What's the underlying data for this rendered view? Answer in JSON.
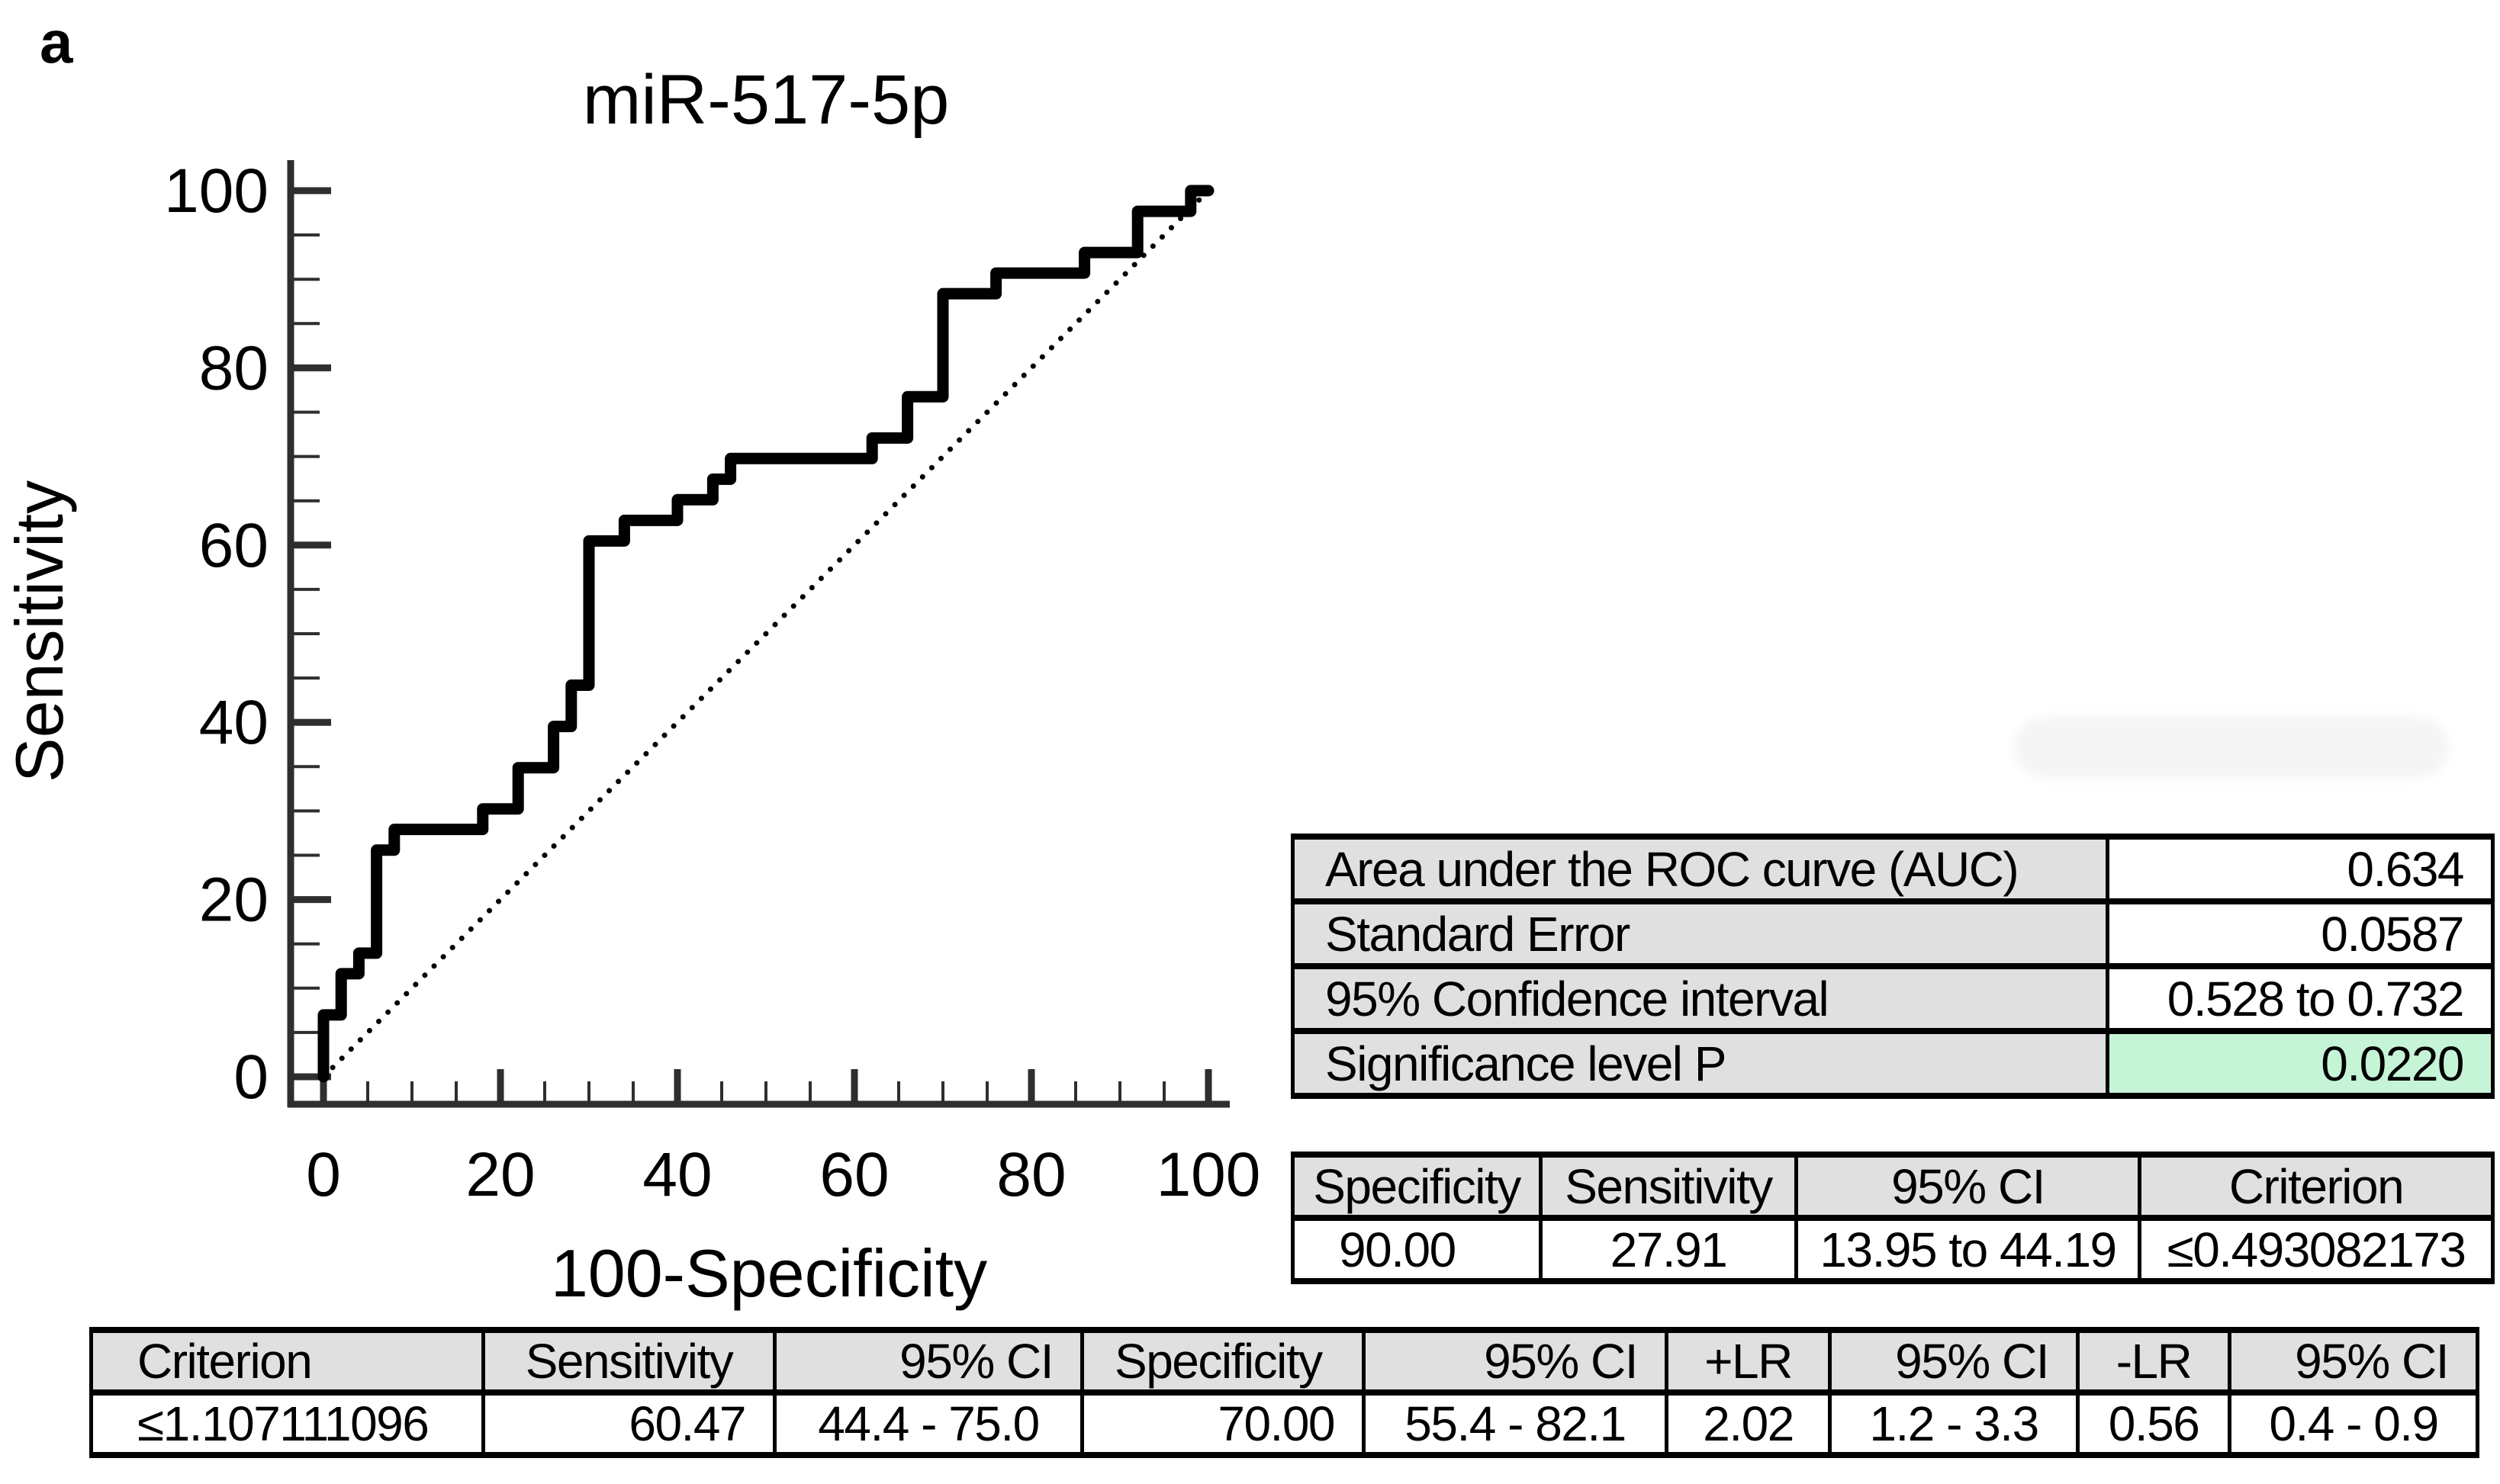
{
  "figure_label": "a",
  "chart_data": {
    "type": "line",
    "subtype": "roc-step-curve",
    "title": "miR-517-5p",
    "xlabel": "100-Specificity",
    "ylabel": "Sensitivity",
    "xlim": [
      0,
      100
    ],
    "ylim": [
      0,
      100
    ],
    "x_ticks": [
      0,
      20,
      40,
      60,
      80,
      100
    ],
    "y_ticks": [
      0,
      20,
      40,
      60,
      80,
      100
    ],
    "minor_tick_step": 5,
    "grid": false,
    "legend": "none",
    "series": [
      {
        "name": "ROC curve (miR-517-5p)",
        "style": "solid-step",
        "color": "#000000",
        "points": [
          [
            0,
            0
          ],
          [
            0,
            6.98
          ],
          [
            2,
            6.98
          ],
          [
            2,
            11.63
          ],
          [
            4,
            11.63
          ],
          [
            4,
            13.95
          ],
          [
            6,
            13.95
          ],
          [
            6,
            25.58
          ],
          [
            8,
            25.58
          ],
          [
            8,
            27.91
          ],
          [
            18,
            27.91
          ],
          [
            18,
            30.23
          ],
          [
            22,
            30.23
          ],
          [
            22,
            34.88
          ],
          [
            26,
            34.88
          ],
          [
            26,
            39.53
          ],
          [
            28,
            39.53
          ],
          [
            28,
            44.19
          ],
          [
            30,
            44.19
          ],
          [
            30,
            60.47
          ],
          [
            34,
            60.47
          ],
          [
            34,
            62.79
          ],
          [
            40,
            62.79
          ],
          [
            40,
            65.12
          ],
          [
            44,
            65.12
          ],
          [
            44,
            67.44
          ],
          [
            46,
            67.44
          ],
          [
            46,
            69.77
          ],
          [
            62,
            69.77
          ],
          [
            62,
            72.09
          ],
          [
            66,
            72.09
          ],
          [
            66,
            76.74
          ],
          [
            70,
            76.74
          ],
          [
            70,
            88.37
          ],
          [
            76,
            88.37
          ],
          [
            76,
            90.7
          ],
          [
            86,
            90.7
          ],
          [
            86,
            93.02
          ],
          [
            92,
            93.02
          ],
          [
            92,
            97.67
          ],
          [
            98,
            97.67
          ],
          [
            98,
            100
          ],
          [
            100,
            100
          ]
        ]
      },
      {
        "name": "reference diagonal",
        "style": "dotted",
        "color": "#000000",
        "points": [
          [
            0,
            0
          ],
          [
            100,
            100
          ]
        ]
      }
    ]
  },
  "tables": {
    "auc": {
      "rows": [
        {
          "label": "Area under the ROC curve (AUC)",
          "value": "0.634"
        },
        {
          "label": "Standard Error",
          "value": "0.0587"
        },
        {
          "label": "95% Confidence interval",
          "value": "0.528 to 0.732"
        },
        {
          "label": "Significance level P",
          "value": "0.0220"
        }
      ]
    },
    "operating_point": {
      "headers": [
        "Specificity",
        "Sensitivity",
        "95% CI",
        "Criterion"
      ],
      "row": [
        "90.00",
        "27.91",
        "13.95 to 44.19",
        "≤0.493082173"
      ]
    },
    "criterion": {
      "headers": [
        "Criterion",
        "Sensitivity",
        "95% CI",
        "Specificity",
        "95% CI",
        "+LR",
        "95% CI",
        "-LR",
        "95% CI"
      ],
      "row": [
        "≤1.107111096",
        "60.47",
        "44.4 - 75.0",
        "70.00",
        "55.4 - 82.1",
        "2.02",
        "1.2 - 3.3",
        "0.56",
        "0.4 - 0.9"
      ]
    }
  },
  "colors": {
    "highlight_green": "#c6f4d6",
    "header_gray": "#e0e0e0",
    "curve_black": "#000000",
    "axis_gray": "#2e2e2e"
  }
}
